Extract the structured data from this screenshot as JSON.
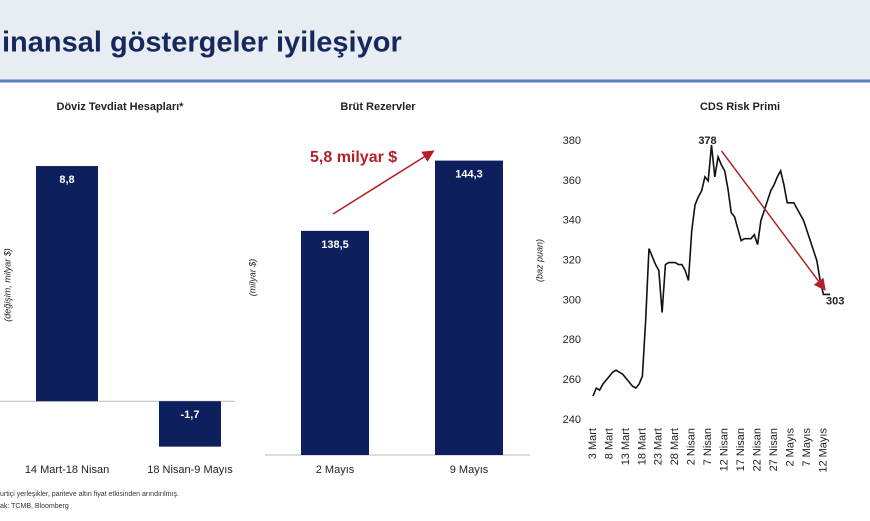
{
  "header": {
    "title": "inansal göstergeler iyileşiyor"
  },
  "chart_data": [
    {
      "type": "bar",
      "title": "Döviz Tevdiat Hesapları*",
      "y_label": "(değişim, milyar $)",
      "categories": [
        "14 Mart-18 Nisan",
        "18 Nisan-9 Mayıs"
      ],
      "values": [
        8.8,
        -1.7
      ],
      "value_labels": [
        "8,8",
        "-1,7"
      ],
      "color": "#0d1f5c",
      "ylim": [
        -2.2,
        9.4
      ]
    },
    {
      "type": "bar",
      "title": "Brüt Rezervler",
      "y_label": "(milyar $)",
      "annotation": "5,8 milyar $",
      "categories": [
        "2 Mayıs",
        "9 Mayıs"
      ],
      "values": [
        138.5,
        144.3
      ],
      "value_labels": [
        "138,5",
        "144,3"
      ],
      "color": "#0d1f5c",
      "ylim": [
        120,
        146
      ]
    },
    {
      "type": "line",
      "title": "CDS Risk Primi",
      "y_label": "(baz puan)",
      "categories": [
        "3 Mart",
        null,
        null,
        null,
        null,
        "8 Mart",
        null,
        null,
        null,
        null,
        "13 Mart",
        null,
        null,
        null,
        null,
        "18 Mart",
        null,
        null,
        null,
        null,
        "23 Mart",
        null,
        null,
        null,
        null,
        "28 Mart",
        null,
        null,
        null,
        null,
        "2 Nisan",
        null,
        null,
        null,
        null,
        "7 Nisan",
        null,
        null,
        null,
        null,
        "12 Nisan",
        null,
        null,
        null,
        null,
        "17 Nisan",
        null,
        null,
        null,
        null,
        "22 Nisan",
        null,
        null,
        null,
        null,
        "27 Nisan",
        null,
        null,
        null,
        null,
        "2 Mayıs",
        null,
        null,
        null,
        null,
        "7 Mayıs",
        null,
        null,
        null,
        null,
        "12 Mayıs",
        null,
        null
      ],
      "series": [
        {
          "color": "#111111",
          "values": [
            252,
            256,
            255,
            258,
            260,
            262,
            264,
            265,
            264,
            263,
            261,
            259,
            257,
            256,
            258,
            262,
            290,
            326,
            322,
            318,
            315,
            294,
            318,
            319,
            319,
            319,
            318,
            318,
            315,
            310,
            335,
            348,
            352,
            355,
            362,
            360,
            378,
            362,
            372,
            368,
            365,
            356,
            344,
            342,
            336,
            330,
            331,
            331,
            331,
            333,
            328,
            340,
            345,
            350,
            355,
            358,
            362,
            365,
            358,
            349,
            349,
            349,
            346,
            343,
            340,
            335,
            330,
            325,
            320,
            310,
            303,
            303,
            303
          ]
        }
      ],
      "ylim": [
        240,
        380
      ],
      "yticks": [
        240,
        260,
        280,
        300,
        320,
        340,
        360,
        380
      ]
    }
  ],
  "notes": [
    "urtiçi yerleşikler, pariteve altın fiyat etkisinden arındırılmış.",
    "ak: TCMB, Bloomberg"
  ]
}
